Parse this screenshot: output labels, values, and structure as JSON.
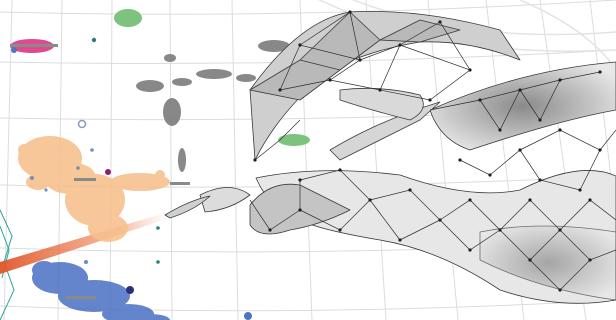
{
  "image": {
    "description_tags": [
      "grid-background",
      "scatter-clusters",
      "wireframe-mesh",
      "laser-beam"
    ],
    "colors": {
      "background": "#ffffff",
      "grid": "#d9d9d9",
      "peach_cluster": "#f7c08e",
      "blue_cluster": "#4f74c4",
      "pink_cluster": "#e2488f",
      "green_cluster": "#7cc47e",
      "gray_cluster": "#7c7c7c",
      "mesh_fill": "#c9c9c9",
      "mesh_stroke": "#3a3a3a",
      "beam": "#e0552a",
      "teal_edge": "#2aa58f"
    }
  }
}
